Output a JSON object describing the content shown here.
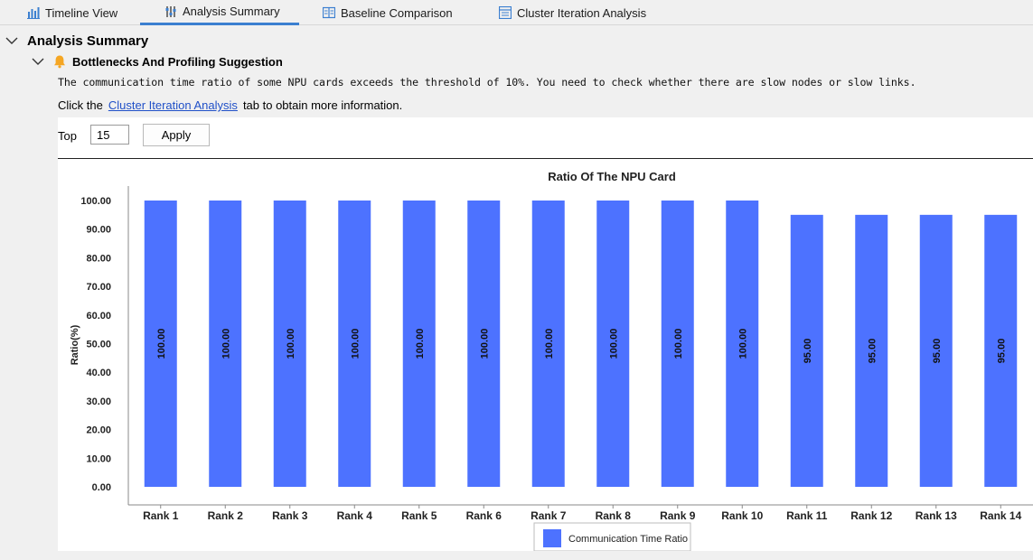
{
  "tabs": [
    {
      "label": "Timeline View",
      "icon": "bar-chart-icon",
      "active": false
    },
    {
      "label": "Analysis Summary",
      "icon": "sliders-icon",
      "active": true
    },
    {
      "label": "Baseline Comparison",
      "icon": "compare-icon",
      "active": false
    },
    {
      "label": "Cluster Iteration Analysis",
      "icon": "grid-icon",
      "active": false
    }
  ],
  "section": {
    "title": "Analysis Summary"
  },
  "subsection": {
    "title": "Bottlenecks And Profiling Suggestion"
  },
  "message": "The communication time ratio of some NPU cards exceeds the threshold of 10%. You need to check whether there are slow nodes or slow links.",
  "hint": {
    "prefix": "Click the",
    "link": "Cluster Iteration Analysis",
    "suffix": "tab to obtain more information."
  },
  "controls": {
    "top_label": "Top",
    "top_value": "15",
    "apply_label": "Apply"
  },
  "colors": {
    "accent": "#3b7fd0",
    "bar": "#4d72ff",
    "link": "#2050c8",
    "bell": "#f5a623"
  },
  "chart_data": {
    "type": "bar",
    "title": "Ratio Of The NPU Card",
    "ylabel": "Ratio(%)",
    "xlabel": "",
    "ylim": [
      0,
      100
    ],
    "yticks": [
      "0.00",
      "10.00",
      "20.00",
      "30.00",
      "40.00",
      "50.00",
      "60.00",
      "70.00",
      "80.00",
      "90.00",
      "100.00"
    ],
    "categories": [
      "Rank 1",
      "Rank 2",
      "Rank 3",
      "Rank 4",
      "Rank 5",
      "Rank 6",
      "Rank 7",
      "Rank 8",
      "Rank 9",
      "Rank 10",
      "Rank 11",
      "Rank 12",
      "Rank 13",
      "Rank 14"
    ],
    "series": [
      {
        "name": "Communication Time Ratio",
        "values": [
          100,
          100,
          100,
          100,
          100,
          100,
          100,
          100,
          100,
          100,
          95,
          95,
          95,
          95
        ],
        "labels": [
          "100.00",
          "100.00",
          "100.00",
          "100.00",
          "100.00",
          "100.00",
          "100.00",
          "100.00",
          "100.00",
          "100.00",
          "95.00",
          "95.00",
          "95.00",
          "95.00"
        ]
      }
    ],
    "legend": "bottom-center",
    "grid": false
  }
}
